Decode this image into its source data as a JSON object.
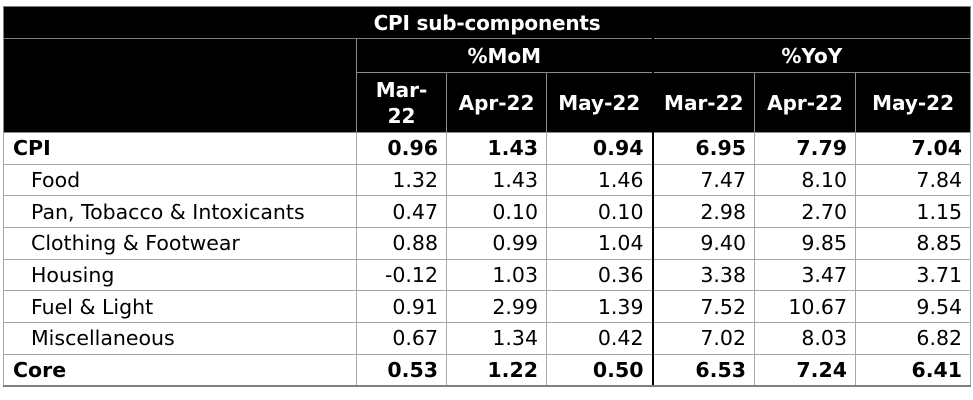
{
  "title": "CPI sub-components",
  "groups": {
    "mom": "%MoM",
    "yoy": "%YoY"
  },
  "months": [
    "Mar-22",
    "Apr-22",
    "May-22",
    "Mar-22",
    "Apr-22",
    "May-22"
  ],
  "rows": [
    {
      "label": "CPI",
      "values": [
        "0.96",
        "1.43",
        "0.94",
        "6.95",
        "7.79",
        "7.04"
      ]
    },
    {
      "label": "Food",
      "values": [
        "1.32",
        "1.43",
        "1.46",
        "7.47",
        "8.10",
        "7.84"
      ]
    },
    {
      "label": "Pan, Tobacco & Intoxicants",
      "values": [
        "0.47",
        "0.10",
        "0.10",
        "2.98",
        "2.70",
        "1.15"
      ]
    },
    {
      "label": "Clothing & Footwear",
      "values": [
        "0.88",
        "0.99",
        "1.04",
        "9.40",
        "9.85",
        "8.85"
      ]
    },
    {
      "label": "Housing",
      "values": [
        "-0.12",
        "1.03",
        "0.36",
        "3.38",
        "3.47",
        "3.71"
      ]
    },
    {
      "label": "Fuel & Light",
      "values": [
        "0.91",
        "2.99",
        "1.39",
        "7.52",
        "10.67",
        "9.54"
      ]
    },
    {
      "label": "Miscellaneous",
      "values": [
        "0.67",
        "1.34",
        "0.42",
        "7.02",
        "8.03",
        "6.82"
      ]
    },
    {
      "label": "Core",
      "values": [
        "0.53",
        "1.22",
        "0.50",
        "6.53",
        "7.24",
        "6.41"
      ]
    }
  ]
}
